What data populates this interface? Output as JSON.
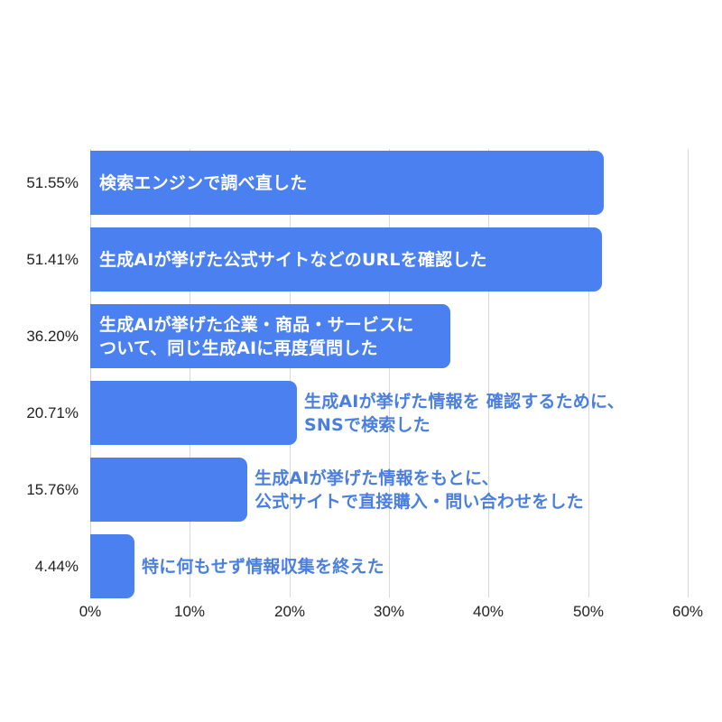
{
  "chart_data": {
    "type": "bar",
    "orientation": "horizontal",
    "title": "",
    "xlabel": "",
    "ylabel": "",
    "xlim": [
      0,
      60
    ],
    "x_ticks": [
      "0%",
      "10%",
      "20%",
      "30%",
      "40%",
      "50%",
      "60%"
    ],
    "grid": true,
    "legend": null,
    "bar_color": "#4a80f0",
    "label_color_outside": "#4a7fe0",
    "categories": [
      "検索エンジンで調べ直した",
      "生成AIが挙げた公式サイトなどのURLを確認した",
      "生成AIが挙げた企業・商品・サービスについて、同じ生成AIに再度質問した",
      "生成AIが挙げた情報を 確認するために、SNSで検索した",
      "生成AIが挙げた情報をもとに、公式サイトで直接購入・問い合わせをした",
      "特に何もせず情報収集を終えた"
    ],
    "values": [
      51.55,
      51.41,
      36.2,
      20.71,
      15.76,
      4.44
    ],
    "rows": [
      {
        "value": 51.55,
        "value_label": "51.55%",
        "line1": "検索エンジンで調べ直した",
        "line2": "",
        "label_inside": true
      },
      {
        "value": 51.41,
        "value_label": "51.41%",
        "line1": "生成AIが挙げた公式サイトなどのURLを確認した",
        "line2": "",
        "label_inside": true
      },
      {
        "value": 36.2,
        "value_label": "36.20%",
        "line1": "生成AIが挙げた企業・商品・サービスに",
        "line2": "ついて、同じ生成AIに再度質問した",
        "label_inside": true
      },
      {
        "value": 20.71,
        "value_label": "20.71%",
        "line1": "生成AIが挙げた情報を  確認するために、",
        "line2": "SNSで検索した",
        "label_inside": false
      },
      {
        "value": 15.76,
        "value_label": "15.76%",
        "line1": "生成AIが挙げた情報をもとに、",
        "line2": "公式サイトで直接購入・問い合わせをした",
        "label_inside": false
      },
      {
        "value": 4.44,
        "value_label": "4.44%",
        "line1": "特に何もせず情報収集を終えた",
        "line2": "",
        "label_inside": false
      }
    ]
  }
}
